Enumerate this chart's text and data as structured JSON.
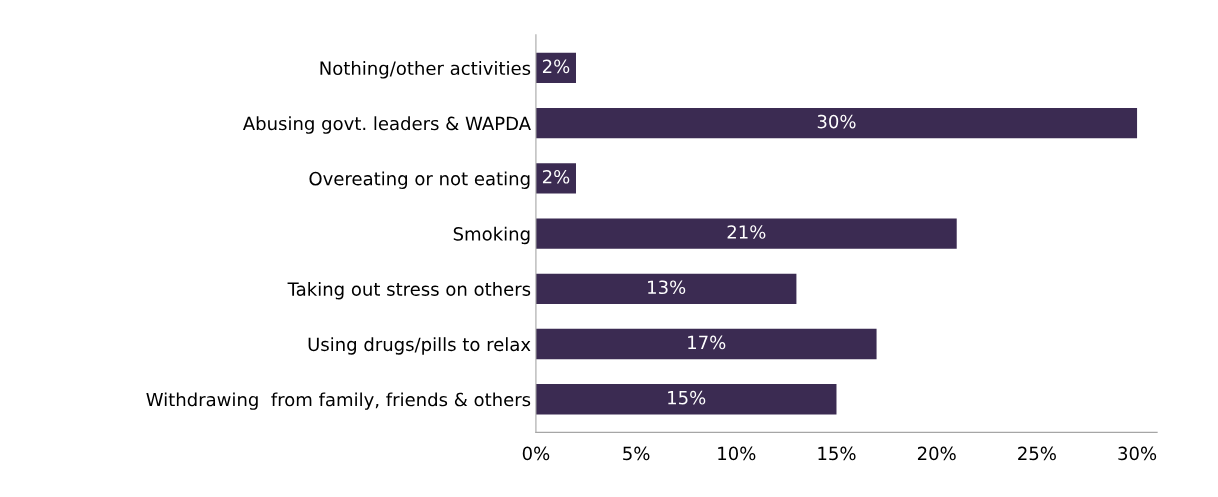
{
  "chart_data": {
    "type": "bar",
    "orientation": "horizontal",
    "categories": [
      "Nothing/other activities",
      "Abusing govt. leaders & WAPDA",
      "Overeating or not eating",
      "Smoking",
      "Taking out stress on others",
      "Using drugs/pills to relax",
      "Withdrawing  from family, friends & others"
    ],
    "values": [
      2,
      30,
      2,
      21,
      13,
      17,
      15
    ],
    "value_labels": [
      "2%",
      "30%",
      "2%",
      "21%",
      "13%",
      "17%",
      "15%"
    ],
    "color": "#3b2b52",
    "xlim": [
      0,
      31
    ],
    "xticks": [
      {
        "value": 0,
        "label": "0%"
      },
      {
        "value": 5,
        "label": "5%"
      },
      {
        "value": 10,
        "label": "10%"
      },
      {
        "value": 15,
        "label": "15%"
      },
      {
        "value": 20,
        "label": "20%"
      },
      {
        "value": 25,
        "label": "25%"
      },
      {
        "value": 30,
        "label": "30%"
      }
    ],
    "grid": false
  }
}
